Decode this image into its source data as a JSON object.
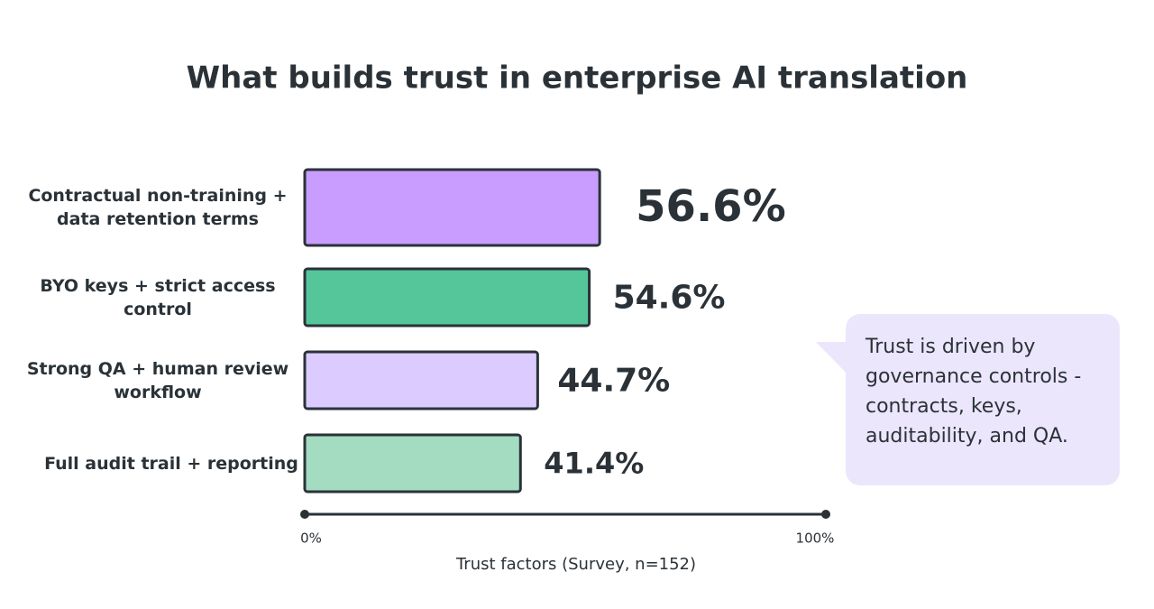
{
  "chart_data": {
    "type": "hbar",
    "title": "What builds trust in enterprise AI translation",
    "categories": [
      "Contractual non-training + data retention terms",
      "BYO keys + strict access control",
      "Strong QA + human review workflow",
      "Full audit trail + reporting"
    ],
    "values": [
      56.6,
      54.6,
      44.7,
      41.4
    ],
    "value_labels": [
      "56.6%",
      "54.6%",
      "44.7%",
      "41.4%"
    ],
    "colors": [
      "#c99cff",
      "#54c69a",
      "#dccbff",
      "#a3dcc0"
    ],
    "xlim": [
      0,
      100
    ],
    "xticks": [
      {
        "value": 0,
        "label": "0%"
      },
      {
        "value": 100,
        "label": "100%"
      }
    ],
    "xlabel": "Trust factors (Survey, n=152)",
    "annotation": "Trust is driven by governance controls - contracts, keys, auditability, and QA."
  }
}
